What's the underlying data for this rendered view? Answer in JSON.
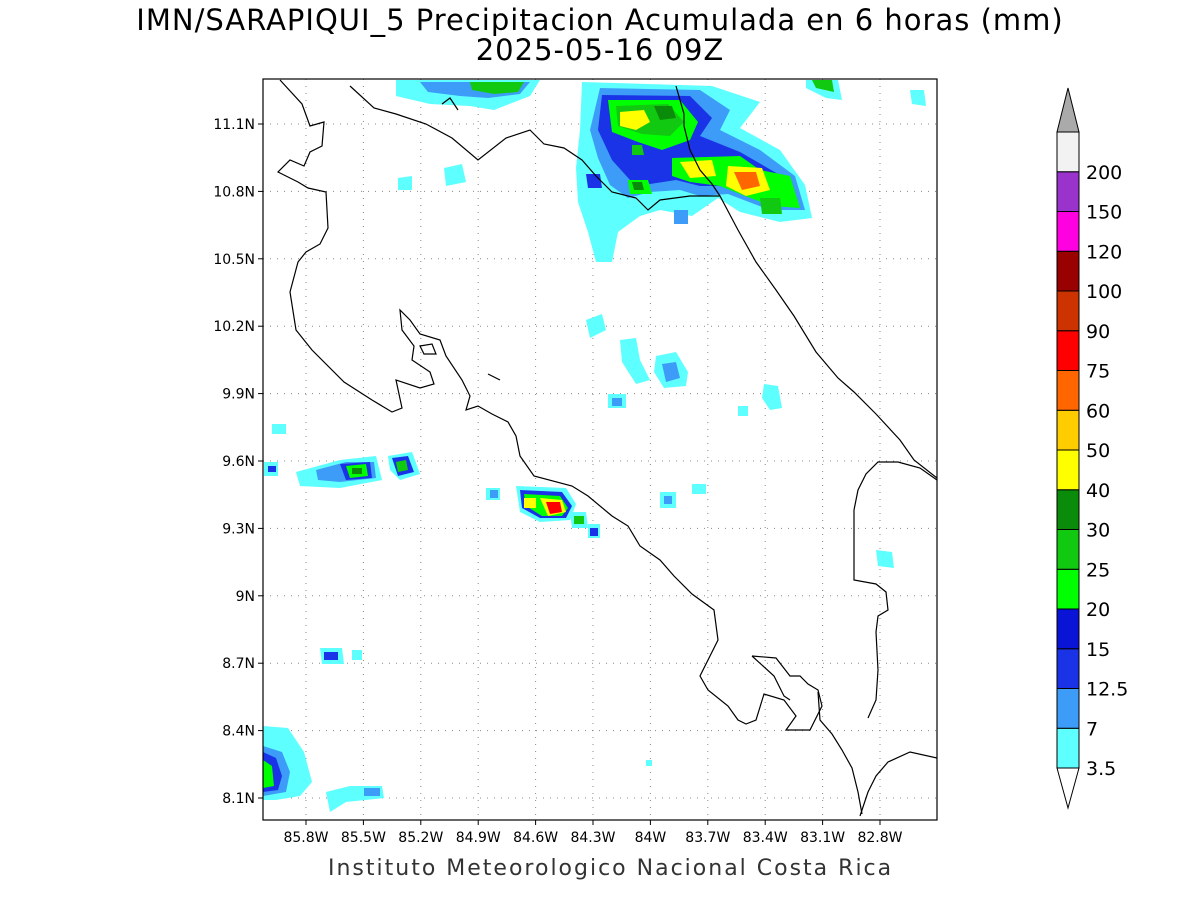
{
  "title": {
    "line1": "IMN/SARAPIQUI_5 Precipitacion Acumulada en 6 horas (mm)",
    "line2": "2025-05-16 09Z"
  },
  "footer": "Instituto Meteorologico Nacional Costa Rica",
  "map": {
    "lat_ticks": [
      "11.1N",
      "10.8N",
      "10.5N",
      "10.2N",
      "9.9N",
      "9.6N",
      "9.3N",
      "9N",
      "8.7N",
      "8.4N",
      "8.1N"
    ],
    "lon_ticks": [
      "85.8W",
      "85.5W",
      "85.2W",
      "84.9W",
      "84.6W",
      "84.3W",
      "84W",
      "83.7W",
      "83.4W",
      "83.1W",
      "82.8W"
    ],
    "grid": true
  },
  "colorbar": {
    "levels": [
      "3.5",
      "7",
      "12.5",
      "15",
      "20",
      "25",
      "30",
      "40",
      "50",
      "60",
      "75",
      "90",
      "100",
      "120",
      "150",
      "200"
    ],
    "colors": [
      "#5effff",
      "#3d9cf7",
      "#1a33e6",
      "#0a14d6",
      "#00ff00",
      "#12c912",
      "#0a8c0a",
      "#ffff00",
      "#ffcc00",
      "#ff6600",
      "#ff0000",
      "#cc3300",
      "#990000",
      "#ff00e0",
      "#9933cc",
      "#f2f2f2",
      "#aaaaaa"
    ]
  }
}
